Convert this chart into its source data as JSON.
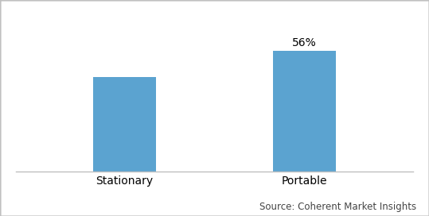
{
  "categories": [
    "Stationary",
    "Portable"
  ],
  "values": [
    44,
    56
  ],
  "bar_color": "#5ba3d0",
  "bar_width": 0.35,
  "show_label": [
    false,
    true
  ],
  "label_texts": [
    "",
    "56%"
  ],
  "ylim": [
    0,
    72
  ],
  "source_text": "Source: Coherent Market Insights",
  "background_color": "#ffffff",
  "label_fontsize": 10,
  "tick_fontsize": 10,
  "source_fontsize": 8.5,
  "border_color": "#c0c0c0"
}
